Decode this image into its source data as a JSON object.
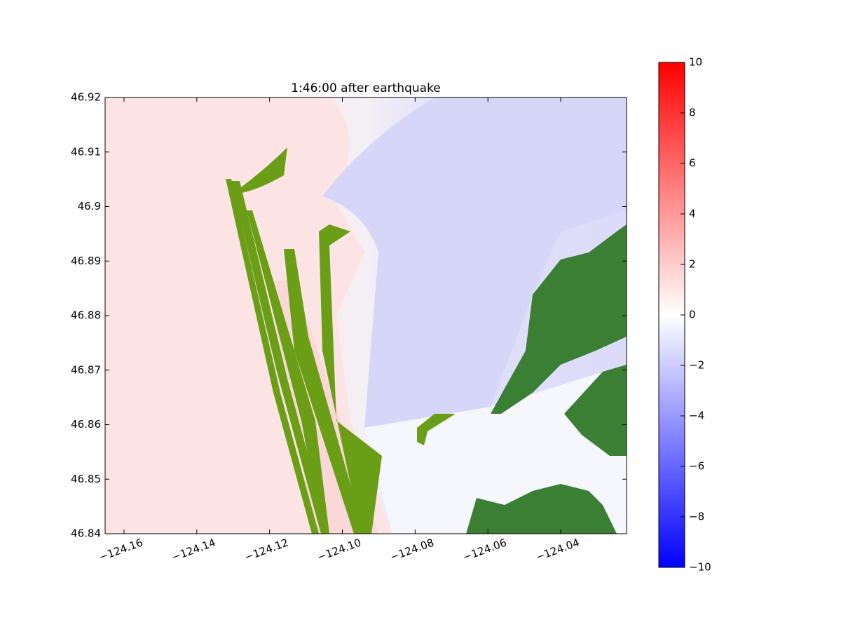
{
  "chart_data": {
    "type": "image",
    "title": "1:46:00 after earthquake",
    "xlim": [
      -124.1652,
      -124.0219
    ],
    "ylim": [
      46.84,
      46.92
    ],
    "xticks": [
      {
        "value": -124.16,
        "label": "−124.16"
      },
      {
        "value": -124.14,
        "label": "−124.14"
      },
      {
        "value": -124.12,
        "label": "−124.12"
      },
      {
        "value": -124.1,
        "label": "−124.10"
      },
      {
        "value": -124.08,
        "label": "−124.08"
      },
      {
        "value": -124.06,
        "label": "−124.06"
      },
      {
        "value": -124.04,
        "label": "−124.04"
      }
    ],
    "yticks": [
      46.84,
      46.85,
      46.86,
      46.87,
      46.88,
      46.89,
      46.9,
      46.91,
      46.92
    ],
    "colorbar": {
      "lim": [
        -10,
        10
      ],
      "colors": [
        "#0000ff",
        "#ffffff",
        "#ff0000"
      ],
      "ticks": [
        {
          "value": -10,
          "label": "−10"
        },
        {
          "value": -8,
          "label": "−8"
        },
        {
          "value": -6,
          "label": "−6"
        },
        {
          "value": -4,
          "label": "−4"
        },
        {
          "value": -2,
          "label": "−2"
        },
        0,
        2,
        4,
        6,
        8,
        10
      ]
    }
  }
}
